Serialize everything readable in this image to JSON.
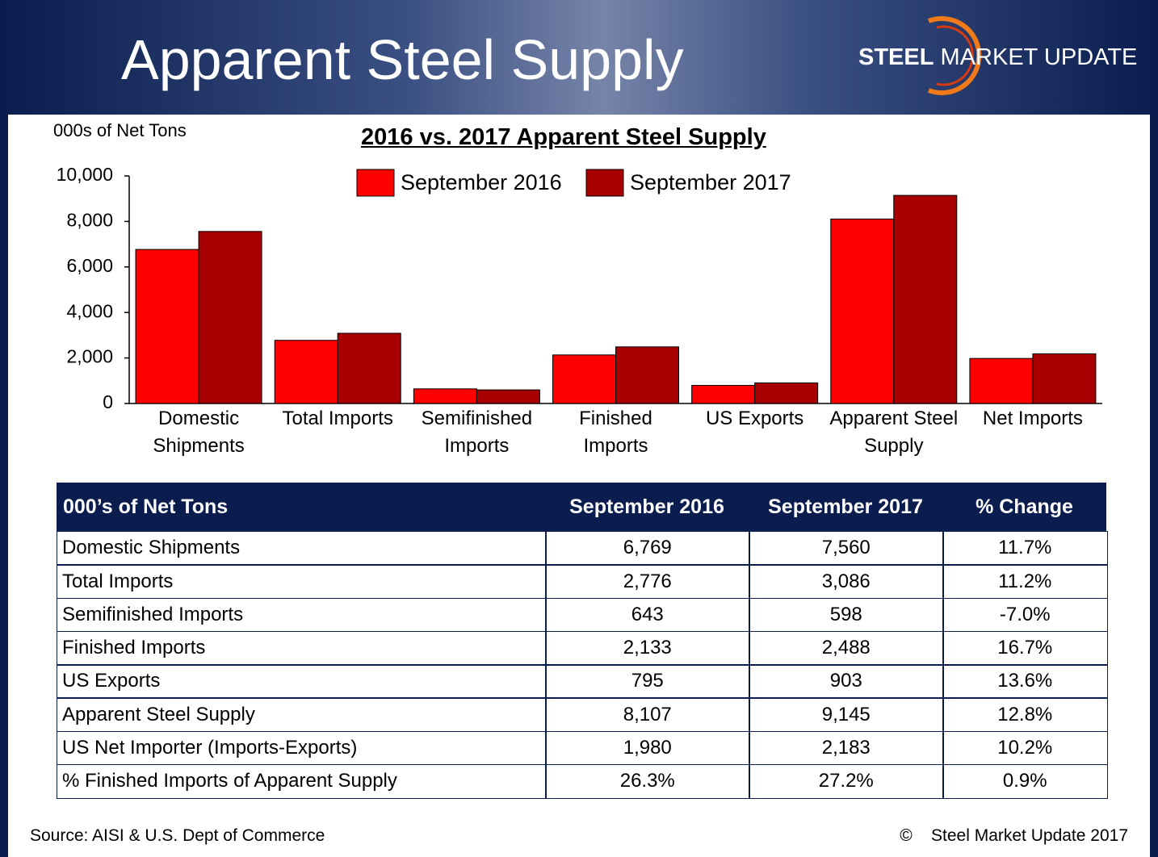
{
  "header": {
    "title": "Apparent Steel Supply",
    "logo_bold": "STEEL",
    "logo_text": "MARKET UPDATE"
  },
  "chart_data": {
    "type": "bar",
    "title": "2016 vs. 2017 Apparent Steel Supply",
    "y_label": "000s of Net Tons",
    "categories": [
      "Domestic Shipments",
      "Total Imports",
      "Semifinished Imports",
      "Finished Imports",
      "US Exports",
      "Apparent Steel Supply",
      "Net Imports"
    ],
    "series": [
      {
        "name": "September 2016",
        "color": "#ff0000",
        "values": [
          6769,
          2776,
          643,
          2133,
          795,
          8107,
          1980
        ]
      },
      {
        "name": "September 2017",
        "color": "#a80000",
        "values": [
          7560,
          3086,
          598,
          2488,
          903,
          9145,
          2183
        ]
      }
    ],
    "ylim": [
      0,
      10000
    ],
    "yticks": [
      0,
      {
        "value": 2000,
        "label": "2,000"
      },
      {
        "value": 4000,
        "label": "4,000"
      },
      {
        "value": 6000,
        "label": "6,000"
      },
      {
        "value": 8000,
        "label": "8,000"
      },
      {
        "value": 10000,
        "label": "10,000"
      }
    ],
    "grid": false,
    "legend": "top"
  },
  "table": {
    "columns": [
      "000’s of Net Tons",
      "September 2016",
      "September 2017",
      "% Change"
    ],
    "rows": [
      [
        "Domestic Shipments",
        "6,769",
        "7,560",
        "11.7%"
      ],
      [
        "Total Imports",
        "2,776",
        "3,086",
        "11.2%"
      ],
      [
        "Semifinished Imports",
        "643",
        "598",
        "-7.0%"
      ],
      [
        "Finished Imports",
        "2,133",
        "2,488",
        "16.7%"
      ],
      [
        "US Exports",
        "795",
        "903",
        "13.6%"
      ],
      [
        "Apparent Steel Supply",
        "8,107",
        "9,145",
        "12.8%"
      ],
      [
        "US Net Importer (Imports-Exports)",
        "1,980",
        "2,183",
        "10.2%"
      ],
      [
        "% Finished Imports of Apparent Supply",
        "26.3%",
        "27.2%",
        "0.9%"
      ]
    ]
  },
  "footer": {
    "source": "Source:  AISI & U.S. Dept of Commerce",
    "copyright": "©    Steel Market Update 2017"
  }
}
